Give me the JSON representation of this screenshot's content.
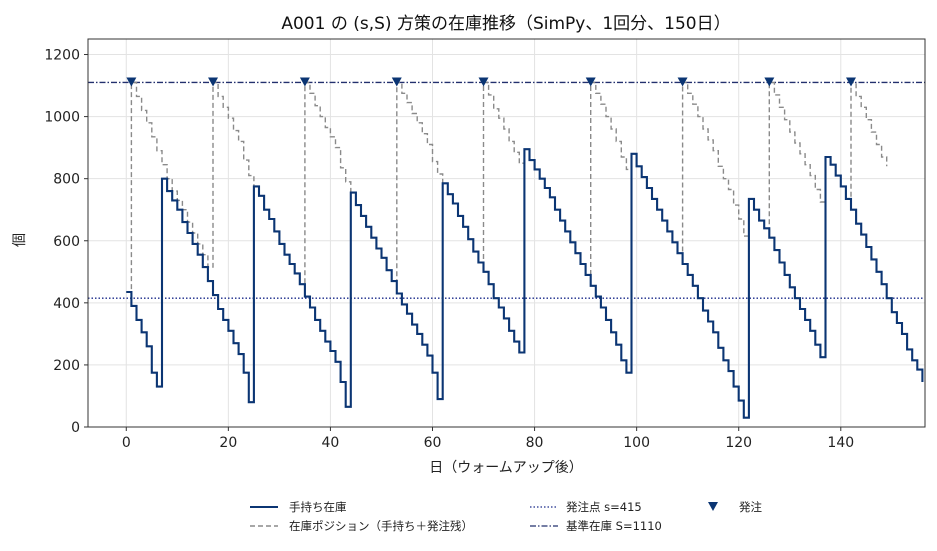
{
  "chart_data": {
    "type": "line",
    "title": "A001 の (s,S) 方策の在庫推移（SimPy、1回分、150日）",
    "xlabel": "日（ウォームアップ後）",
    "ylabel": "個",
    "xlim": [
      -7.5,
      156.5
    ],
    "ylim": [
      0,
      1250
    ],
    "xticks": [
      0,
      20,
      40,
      60,
      80,
      100,
      120,
      140
    ],
    "yticks": [
      0,
      200,
      400,
      600,
      800,
      1000,
      1200
    ],
    "grid": true,
    "legend_position": "bottom",
    "reorder_point": 415,
    "base_stock": 1110,
    "colors": {
      "on_hand": "#0b3573",
      "position": "#8a8a8a",
      "reorder": "#1a2a8a",
      "base": "#23306e",
      "marker": "#0b3573"
    },
    "legend": {
      "on_hand": "手持ち在庫",
      "position": "在庫ポジション（手持ち＋発注残）",
      "reorder": "発注点 s=415",
      "base": "基準在庫 S=1110",
      "orders": "発注"
    },
    "order_days": [
      1,
      17,
      35,
      53,
      70,
      91,
      109,
      126,
      142
    ],
    "series": [
      {
        "name": "手持ち在庫",
        "style": "step-solid",
        "points": [
          [
            0,
            435
          ],
          [
            1,
            390
          ],
          [
            2,
            345
          ],
          [
            3,
            305
          ],
          [
            4,
            260
          ],
          [
            5,
            175
          ],
          [
            6,
            130
          ],
          [
            7,
            800
          ],
          [
            8,
            760
          ],
          [
            9,
            730
          ],
          [
            10,
            700
          ],
          [
            11,
            660
          ],
          [
            12,
            625
          ],
          [
            13,
            590
          ],
          [
            14,
            555
          ],
          [
            15,
            515
          ],
          [
            16,
            470
          ],
          [
            17,
            425
          ],
          [
            18,
            380
          ],
          [
            19,
            345
          ],
          [
            20,
            310
          ],
          [
            21,
            270
          ],
          [
            22,
            235
          ],
          [
            23,
            175
          ],
          [
            24,
            80
          ],
          [
            25,
            775
          ],
          [
            26,
            745
          ],
          [
            27,
            700
          ],
          [
            28,
            670
          ],
          [
            29,
            630
          ],
          [
            30,
            590
          ],
          [
            31,
            555
          ],
          [
            32,
            525
          ],
          [
            33,
            495
          ],
          [
            34,
            460
          ],
          [
            35,
            420
          ],
          [
            36,
            385
          ],
          [
            37,
            345
          ],
          [
            38,
            310
          ],
          [
            39,
            275
          ],
          [
            40,
            245
          ],
          [
            41,
            210
          ],
          [
            42,
            145
          ],
          [
            43,
            65
          ],
          [
            44,
            755
          ],
          [
            45,
            715
          ],
          [
            46,
            680
          ],
          [
            47,
            645
          ],
          [
            48,
            610
          ],
          [
            49,
            575
          ],
          [
            50,
            545
          ],
          [
            51,
            505
          ],
          [
            52,
            470
          ],
          [
            53,
            430
          ],
          [
            54,
            395
          ],
          [
            55,
            365
          ],
          [
            56,
            330
          ],
          [
            57,
            300
          ],
          [
            58,
            265
          ],
          [
            59,
            230
          ],
          [
            60,
            175
          ],
          [
            61,
            90
          ],
          [
            62,
            785
          ],
          [
            63,
            750
          ],
          [
            64,
            720
          ],
          [
            65,
            680
          ],
          [
            66,
            645
          ],
          [
            67,
            605
          ],
          [
            68,
            565
          ],
          [
            69,
            530
          ],
          [
            70,
            500
          ],
          [
            71,
            460
          ],
          [
            72,
            415
          ],
          [
            73,
            385
          ],
          [
            74,
            350
          ],
          [
            75,
            310
          ],
          [
            76,
            275
          ],
          [
            77,
            240
          ],
          [
            78,
            895
          ],
          [
            79,
            860
          ],
          [
            80,
            830
          ],
          [
            81,
            800
          ],
          [
            82,
            770
          ],
          [
            83,
            740
          ],
          [
            84,
            700
          ],
          [
            85,
            665
          ],
          [
            86,
            630
          ],
          [
            87,
            595
          ],
          [
            88,
            560
          ],
          [
            89,
            525
          ],
          [
            90,
            490
          ],
          [
            91,
            455
          ],
          [
            92,
            420
          ],
          [
            93,
            385
          ],
          [
            94,
            345
          ],
          [
            95,
            305
          ],
          [
            96,
            265
          ],
          [
            97,
            215
          ],
          [
            98,
            175
          ],
          [
            99,
            880
          ],
          [
            100,
            840
          ],
          [
            101,
            805
          ],
          [
            102,
            770
          ],
          [
            103,
            735
          ],
          [
            104,
            700
          ],
          [
            105,
            665
          ],
          [
            106,
            630
          ],
          [
            107,
            595
          ],
          [
            108,
            560
          ],
          [
            109,
            525
          ],
          [
            110,
            490
          ],
          [
            111,
            455
          ],
          [
            112,
            415
          ],
          [
            113,
            375
          ],
          [
            114,
            340
          ],
          [
            115,
            305
          ],
          [
            116,
            255
          ],
          [
            117,
            215
          ],
          [
            118,
            180
          ],
          [
            119,
            130
          ],
          [
            120,
            85
          ],
          [
            121,
            30
          ],
          [
            122,
            735
          ],
          [
            123,
            700
          ],
          [
            124,
            665
          ],
          [
            125,
            640
          ],
          [
            126,
            610
          ],
          [
            127,
            570
          ],
          [
            128,
            530
          ],
          [
            129,
            490
          ],
          [
            130,
            450
          ],
          [
            131,
            415
          ],
          [
            132,
            380
          ],
          [
            133,
            345
          ],
          [
            134,
            310
          ],
          [
            135,
            265
          ],
          [
            136,
            225
          ],
          [
            137,
            870
          ],
          [
            138,
            845
          ],
          [
            139,
            810
          ],
          [
            140,
            775
          ],
          [
            141,
            735
          ],
          [
            142,
            700
          ],
          [
            143,
            655
          ],
          [
            144,
            620
          ],
          [
            145,
            580
          ],
          [
            146,
            540
          ],
          [
            147,
            500
          ],
          [
            148,
            460
          ],
          [
            149,
            415
          ],
          [
            150,
            370
          ],
          [
            151,
            335
          ],
          [
            152,
            300
          ],
          [
            153,
            250
          ],
          [
            154,
            215
          ],
          [
            155,
            185
          ],
          [
            156,
            145
          ]
        ]
      },
      {
        "name": "在庫ポジション（手持ち＋発注残）",
        "style": "step-dashed",
        "points": [
          [
            0,
            435
          ],
          [
            1,
            1110
          ],
          [
            2,
            1065
          ],
          [
            3,
            1020
          ],
          [
            4,
            980
          ],
          [
            5,
            935
          ],
          [
            6,
            890
          ],
          [
            7,
            845
          ],
          [
            8,
            800
          ],
          [
            9,
            760
          ],
          [
            10,
            730
          ],
          [
            11,
            700
          ],
          [
            12,
            660
          ],
          [
            13,
            625
          ],
          [
            14,
            590
          ],
          [
            15,
            555
          ],
          [
            16,
            515
          ],
          [
            17,
            1110
          ],
          [
            18,
            1065
          ],
          [
            19,
            1030
          ],
          [
            20,
            995
          ],
          [
            21,
            955
          ],
          [
            22,
            920
          ],
          [
            23,
            860
          ],
          [
            24,
            810
          ],
          [
            25,
            775
          ],
          [
            26,
            745
          ],
          [
            27,
            700
          ],
          [
            28,
            670
          ],
          [
            29,
            630
          ],
          [
            30,
            590
          ],
          [
            31,
            555
          ],
          [
            32,
            525
          ],
          [
            33,
            495
          ],
          [
            34,
            460
          ],
          [
            35,
            1110
          ],
          [
            36,
            1075
          ],
          [
            37,
            1035
          ],
          [
            38,
            1000
          ],
          [
            39,
            965
          ],
          [
            40,
            935
          ],
          [
            41,
            900
          ],
          [
            42,
            835
          ],
          [
            43,
            790
          ],
          [
            44,
            755
          ],
          [
            45,
            715
          ],
          [
            46,
            680
          ],
          [
            47,
            645
          ],
          [
            48,
            610
          ],
          [
            49,
            575
          ],
          [
            50,
            545
          ],
          [
            51,
            505
          ],
          [
            52,
            470
          ],
          [
            53,
            1110
          ],
          [
            54,
            1075
          ],
          [
            55,
            1045
          ],
          [
            56,
            1010
          ],
          [
            57,
            980
          ],
          [
            58,
            945
          ],
          [
            59,
            910
          ],
          [
            60,
            855
          ],
          [
            61,
            815
          ],
          [
            62,
            785
          ],
          [
            63,
            750
          ],
          [
            64,
            720
          ],
          [
            65,
            680
          ],
          [
            66,
            645
          ],
          [
            67,
            605
          ],
          [
            68,
            565
          ],
          [
            69,
            530
          ],
          [
            70,
            1110
          ],
          [
            71,
            1070
          ],
          [
            72,
            1025
          ],
          [
            73,
            995
          ],
          [
            74,
            960
          ],
          [
            75,
            920
          ],
          [
            76,
            885
          ],
          [
            77,
            850
          ],
          [
            78,
            895
          ],
          [
            79,
            860
          ],
          [
            80,
            830
          ],
          [
            81,
            800
          ],
          [
            82,
            770
          ],
          [
            83,
            740
          ],
          [
            84,
            700
          ],
          [
            85,
            665
          ],
          [
            86,
            630
          ],
          [
            87,
            595
          ],
          [
            88,
            560
          ],
          [
            89,
            525
          ],
          [
            90,
            490
          ],
          [
            91,
            1110
          ],
          [
            92,
            1075
          ],
          [
            93,
            1040
          ],
          [
            94,
            1000
          ],
          [
            95,
            960
          ],
          [
            96,
            920
          ],
          [
            97,
            870
          ],
          [
            98,
            830
          ],
          [
            99,
            880
          ],
          [
            100,
            840
          ],
          [
            101,
            805
          ],
          [
            102,
            770
          ],
          [
            103,
            735
          ],
          [
            104,
            700
          ],
          [
            105,
            665
          ],
          [
            106,
            630
          ],
          [
            107,
            595
          ],
          [
            108,
            560
          ],
          [
            109,
            1110
          ],
          [
            110,
            1075
          ],
          [
            111,
            1040
          ],
          [
            112,
            1000
          ],
          [
            113,
            960
          ],
          [
            114,
            925
          ],
          [
            115,
            890
          ],
          [
            116,
            840
          ],
          [
            117,
            800
          ],
          [
            118,
            765
          ],
          [
            119,
            715
          ],
          [
            120,
            670
          ],
          [
            121,
            615
          ],
          [
            122,
            735
          ],
          [
            123,
            700
          ],
          [
            124,
            665
          ],
          [
            125,
            640
          ],
          [
            126,
            1110
          ],
          [
            127,
            1070
          ],
          [
            128,
            1030
          ],
          [
            129,
            990
          ],
          [
            130,
            950
          ],
          [
            131,
            915
          ],
          [
            132,
            880
          ],
          [
            133,
            845
          ],
          [
            134,
            810
          ],
          [
            135,
            765
          ],
          [
            136,
            725
          ],
          [
            137,
            870
          ],
          [
            138,
            845
          ],
          [
            139,
            810
          ],
          [
            140,
            775
          ],
          [
            141,
            735
          ],
          [
            142,
            1110
          ],
          [
            143,
            1065
          ],
          [
            144,
            1030
          ],
          [
            145,
            990
          ],
          [
            146,
            950
          ],
          [
            147,
            910
          ],
          [
            148,
            870
          ],
          [
            149,
            840
          ]
        ]
      }
    ]
  }
}
